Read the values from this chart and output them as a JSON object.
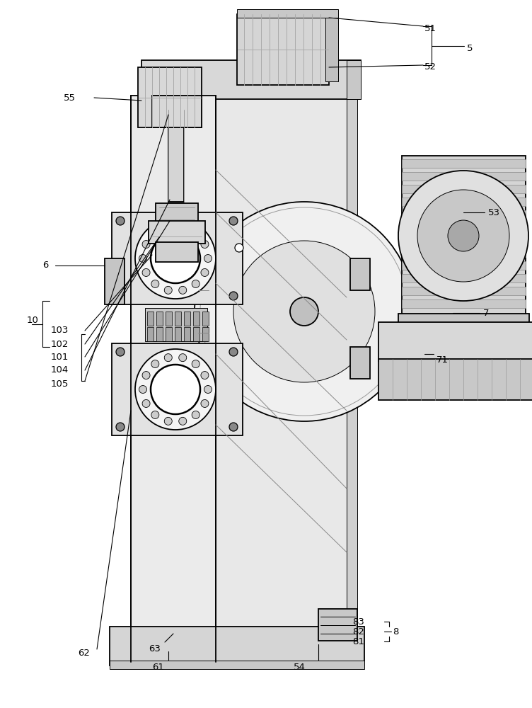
{
  "fig_width": 7.52,
  "fig_height": 10.0,
  "bg_color": "#ffffff",
  "line_color": "#000000"
}
